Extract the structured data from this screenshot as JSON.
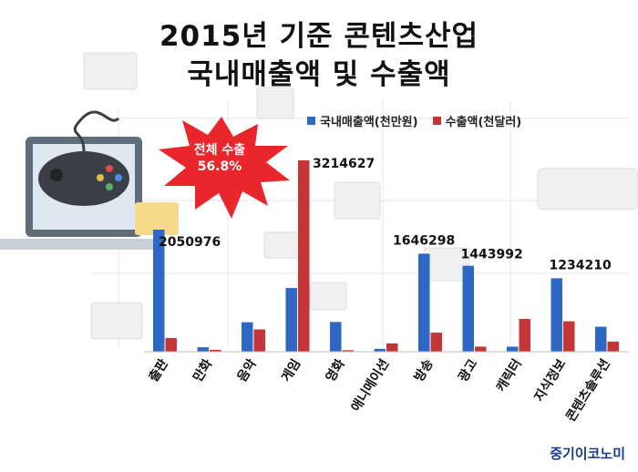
{
  "header": {
    "title_line1": "2015년 기준 콘텐츠산업",
    "title_line2": "국내매출액 및 수출액"
  },
  "callout": {
    "line1": "전체 수출",
    "line2": "56.8%",
    "color": "#e8262b"
  },
  "source": "중기이코노미",
  "chart_data": {
    "type": "bar",
    "categories": [
      "출판",
      "만화",
      "음악",
      "게임",
      "영화",
      "애니메이션",
      "방송",
      "광고",
      "캐릭터",
      "지식정보",
      "콘텐츠솔루션"
    ],
    "series": [
      {
        "name": "국내매출액(천만원)",
        "color": "#2f67c4",
        "values": [
          2050976,
          75000,
          495000,
          1070000,
          500000,
          48000,
          1646298,
          1443992,
          85000,
          1234210,
          420000
        ]
      },
      {
        "name": "수출액(천달러)",
        "color": "#c43538",
        "values": [
          230000,
          32000,
          375000,
          3214627,
          25000,
          140000,
          320000,
          85000,
          550000,
          510000,
          170000
        ]
      }
    ],
    "data_labels": [
      {
        "category": "출판",
        "series": 0,
        "text": "2050976"
      },
      {
        "category": "게임",
        "series": 1,
        "text": "3214627"
      },
      {
        "category": "방송",
        "series": 0,
        "text": "1646298"
      },
      {
        "category": "광고",
        "series": 0,
        "text": "1443992"
      },
      {
        "category": "지식정보",
        "series": 0,
        "text": "1234210"
      }
    ],
    "ylim": [
      0,
      3300000
    ],
    "legend_position": "top-right",
    "grid": false
  }
}
